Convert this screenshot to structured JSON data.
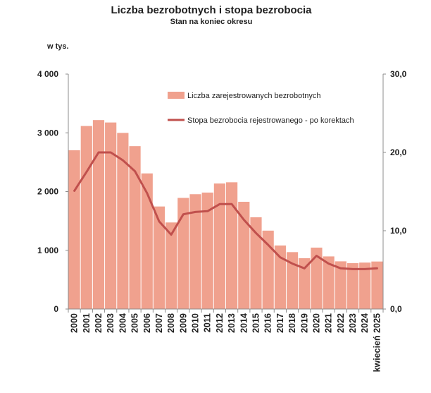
{
  "chart_data": {
    "type": "bar+line",
    "title": "Liczba bezrobotnych i stopa bezrobocia",
    "subtitle": "Stan na koniec okresu",
    "ylabel_left": "w tys.",
    "ylim_left": [
      0,
      4000
    ],
    "yticks_left": [
      "0",
      "1 000",
      "2 000",
      "3 000",
      "4 000"
    ],
    "ylim_right": [
      0,
      30
    ],
    "yticks_right": [
      "0,0",
      "10,0",
      "20,0",
      "30,0"
    ],
    "categories": [
      "2000",
      "2001",
      "2002",
      "2003",
      "2004",
      "2005",
      "2006",
      "2007",
      "2008",
      "2009",
      "2010",
      "2011",
      "2012",
      "2013",
      "2014",
      "2015",
      "2016",
      "2017",
      "2018",
      "2019",
      "2020",
      "2021",
      "2022",
      "2023",
      "2024",
      "kwiecień 2025"
    ],
    "series": [
      {
        "name": "Liczba zarejestrowanych bezrobotnych",
        "kind": "bar",
        "axis": "left",
        "color": "#f0a18e",
        "values": [
          2703,
          3116,
          3217,
          3176,
          2999,
          2773,
          2309,
          1746,
          1474,
          1892,
          1955,
          1983,
          2137,
          2158,
          1826,
          1563,
          1335,
          1082,
          969,
          866,
          1046,
          896,
          812,
          782,
          791,
          809
        ]
      },
      {
        "name": "Stopa bezrobocia rejestrowanego - po korektach",
        "kind": "line",
        "axis": "right",
        "color": "#c0504d",
        "values": [
          15.1,
          17.5,
          20.0,
          20.0,
          19.0,
          17.6,
          14.8,
          11.2,
          9.5,
          12.1,
          12.4,
          12.5,
          13.4,
          13.4,
          11.4,
          9.7,
          8.2,
          6.6,
          5.8,
          5.2,
          6.8,
          5.8,
          5.2,
          5.1,
          5.1,
          5.2
        ]
      }
    ]
  }
}
